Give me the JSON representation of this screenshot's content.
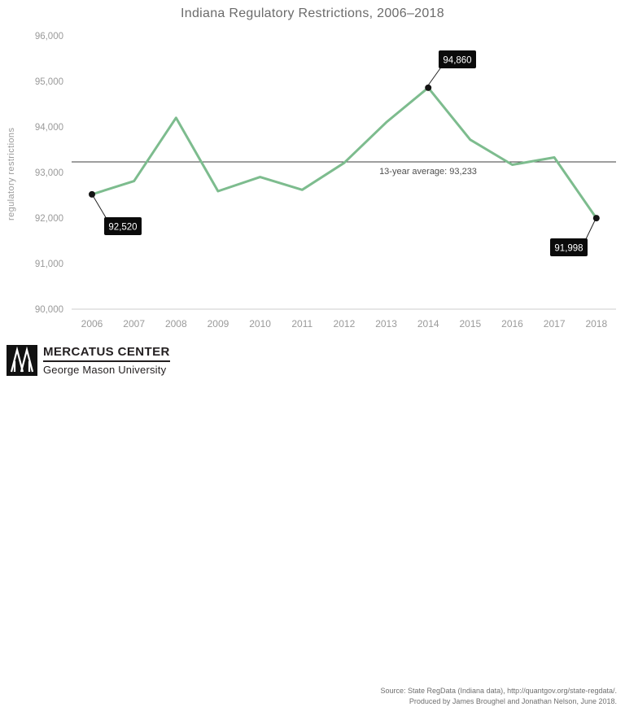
{
  "chart_data": {
    "type": "line",
    "title": "Indiana Regulatory Restrictions, 2006–2018",
    "ylabel": "regulatory restrictions",
    "xlabel": "",
    "categories": [
      "2006",
      "2007",
      "2008",
      "2009",
      "2010",
      "2011",
      "2012",
      "2013",
      "2014",
      "2015",
      "2016",
      "2017",
      "2018"
    ],
    "values": [
      92520,
      92810,
      94200,
      92590,
      92900,
      92620,
      93210,
      94100,
      94860,
      93720,
      93170,
      93330,
      91998
    ],
    "ylim": [
      90000,
      96000
    ],
    "y_tick_labels": [
      "96,000",
      "95,000",
      "94,000",
      "93,000",
      "92,000",
      "91,000",
      "90,000"
    ],
    "y_tick_values": [
      96000,
      95000,
      94000,
      93000,
      92000,
      91000,
      90000
    ],
    "grid": "off",
    "legend": "none",
    "line_color": "#7dbc8e",
    "marker_color": "#141414",
    "average": {
      "value": 93233,
      "label": "13-year average: 93,233"
    },
    "annotations": [
      {
        "category": "2006",
        "index": 0,
        "label": "92,520"
      },
      {
        "category": "2014",
        "index": 8,
        "label": "94,860"
      },
      {
        "category": "2018",
        "index": 12,
        "label": "91,998"
      }
    ]
  },
  "footer": {
    "logo_title": "MERCATUS CENTER",
    "logo_subtitle": "George Mason University",
    "source_line1": "Source: State RegData (Indiana data), http://quantgov.org/state-regdata/.",
    "source_line2": "Produced by James Broughel and Jonathan Nelson, June 2018."
  }
}
